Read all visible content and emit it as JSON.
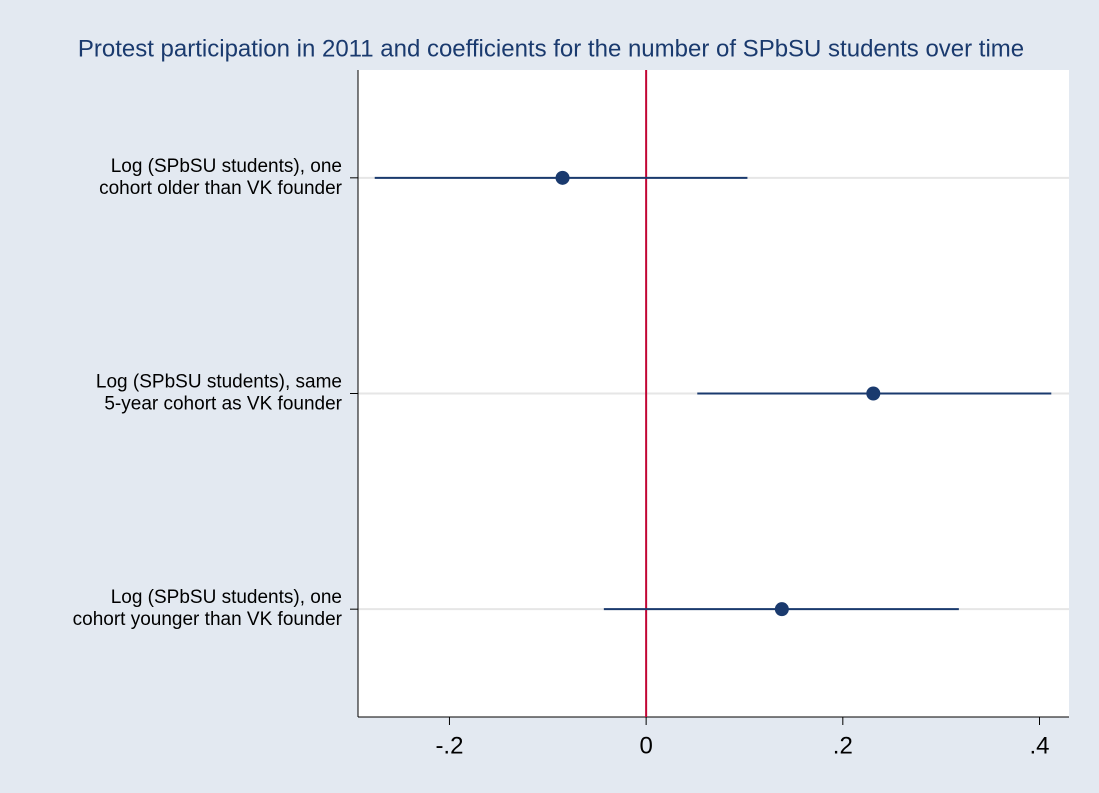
{
  "chart_data": {
    "type": "coefplot",
    "title": "Protest participation in 2011 and coefficients for the number of SPbSU students over time",
    "categories": [
      [
        "Log (SPbSU students), one",
        "cohort older than VK founder"
      ],
      [
        "Log (SPbSU students), same",
        "5-year cohort as VK founder"
      ],
      [
        "Log (SPbSU students), one",
        "cohort younger than VK founder"
      ]
    ],
    "series": [
      {
        "color": "#1a3a6e",
        "values": [
          -0.085,
          0.231,
          0.138
        ],
        "ci_low": [
          -0.276,
          0.052,
          -0.043
        ],
        "ci_high": [
          0.103,
          0.412,
          0.318
        ]
      }
    ],
    "xlim": [
      -0.293,
      0.43
    ],
    "xticks": [
      {
        "value": -0.2,
        "label": "-.2"
      },
      0,
      {
        "value": 0.2,
        "label": ".2"
      },
      {
        "value": 0.4,
        "label": ".4"
      }
    ],
    "reference_line": {
      "value": 0,
      "color": "#c10534"
    },
    "grid": true
  }
}
